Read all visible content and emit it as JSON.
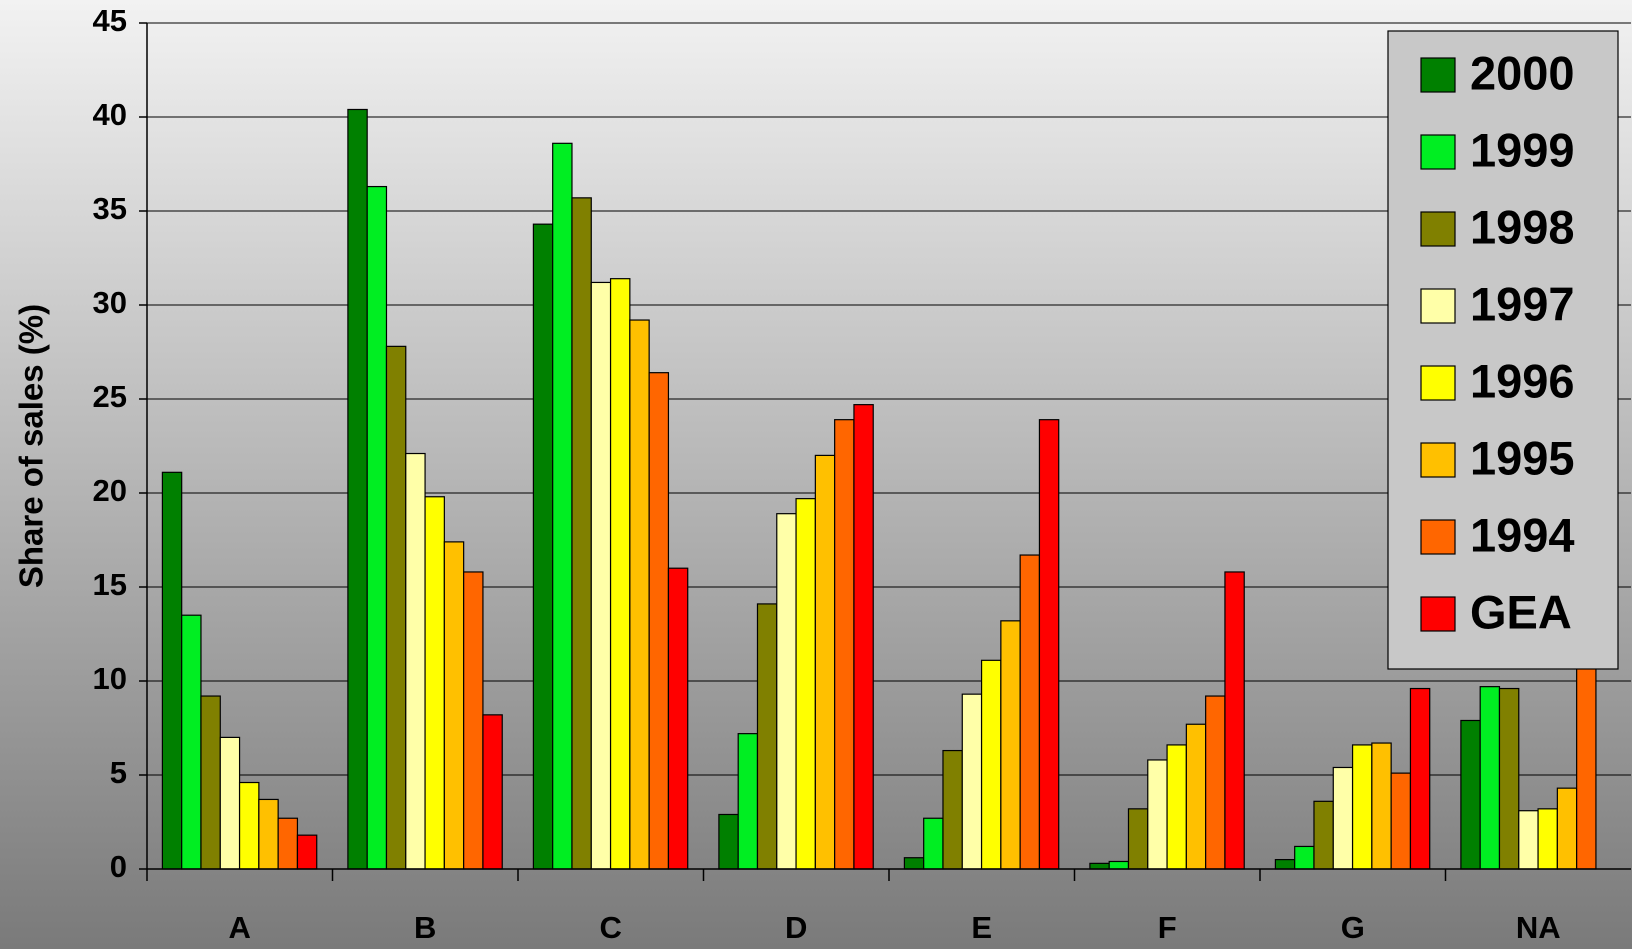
{
  "chart_data": {
    "type": "bar",
    "y_label": "Share of sales (%)",
    "categories": [
      "A",
      "B",
      "C",
      "D",
      "E",
      "F",
      "G",
      "NA"
    ],
    "series": [
      {
        "name": "2000",
        "color": "#008000",
        "values": [
          21.1,
          40.4,
          34.3,
          2.9,
          0.6,
          0.3,
          0.5,
          7.9
        ]
      },
      {
        "name": "1999",
        "color": "#00ee22",
        "values": [
          13.5,
          36.3,
          38.6,
          7.2,
          2.7,
          0.4,
          1.2,
          9.7
        ]
      },
      {
        "name": "1998",
        "color": "#808000",
        "values": [
          9.2,
          27.8,
          35.7,
          14.1,
          6.3,
          3.2,
          3.6,
          9.6
        ]
      },
      {
        "name": "1997",
        "color": "#ffffa8",
        "values": [
          7.0,
          22.1,
          31.2,
          18.9,
          9.3,
          5.8,
          5.4,
          3.1
        ]
      },
      {
        "name": "1996",
        "color": "#ffff00",
        "values": [
          4.6,
          19.8,
          31.4,
          19.7,
          11.1,
          6.6,
          6.6,
          3.2
        ]
      },
      {
        "name": "1995",
        "color": "#ffc000",
        "values": [
          3.7,
          17.4,
          29.2,
          22.0,
          13.2,
          7.7,
          6.7,
          4.3
        ]
      },
      {
        "name": "1994",
        "color": "#ff6600",
        "values": [
          2.7,
          15.8,
          26.4,
          23.9,
          16.7,
          9.2,
          5.1,
          10.8
        ]
      },
      {
        "name": "GEA",
        "color": "#ff0000",
        "values": [
          1.8,
          8.2,
          16.0,
          24.7,
          23.9,
          15.8,
          9.6,
          null
        ]
      }
    ],
    "ylim": [
      0,
      45
    ],
    "yticks": [
      0,
      5,
      10,
      15,
      20,
      25,
      30,
      35,
      40,
      45
    ],
    "grid": true,
    "legend": "top-right"
  }
}
